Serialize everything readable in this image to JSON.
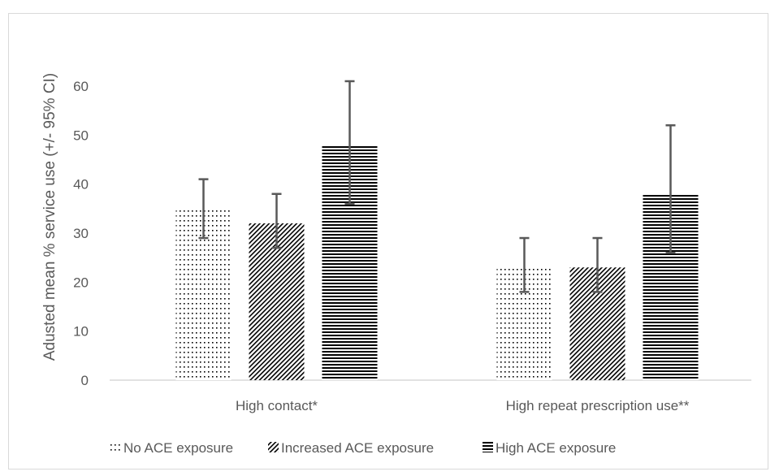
{
  "chart_data": {
    "type": "bar",
    "title": "",
    "xlabel": "",
    "ylabel": "Adusted mean % service use (+/- 95% CI)",
    "ylim": [
      0,
      60
    ],
    "yticks": [
      0,
      10,
      20,
      30,
      40,
      50,
      60
    ],
    "categories": [
      "High contact*",
      "High repeat prescription use**"
    ],
    "series": [
      {
        "name": "No ACE exposure",
        "pattern": "dots",
        "values": [
          35,
          23
        ],
        "ci_low": [
          29,
          18
        ],
        "ci_high": [
          41,
          29
        ]
      },
      {
        "name": "Increased ACE exposure",
        "pattern": "diagonal",
        "values": [
          32,
          23
        ],
        "ci_low": [
          27,
          18
        ],
        "ci_high": [
          38,
          29
        ]
      },
      {
        "name": "High ACE exposure",
        "pattern": "horizontal",
        "values": [
          48,
          38
        ],
        "ci_low": [
          36,
          26
        ],
        "ci_high": [
          61,
          52
        ]
      }
    ],
    "grid": false,
    "legend_position": "bottom",
    "colors": {
      "bar": "#000000",
      "error_bar": "#595959",
      "axis": "#d9d9d9",
      "text": "#595959"
    }
  }
}
